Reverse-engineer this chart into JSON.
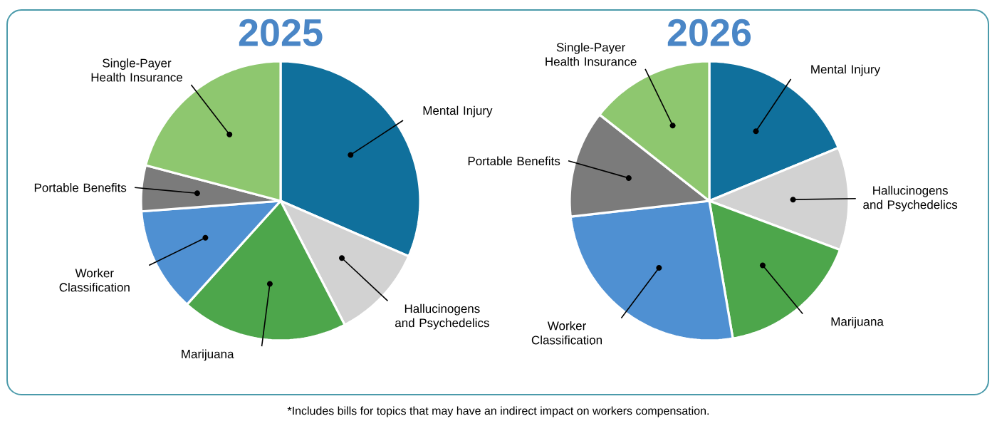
{
  "chart_data": [
    {
      "type": "pie",
      "title": "2025",
      "categories": [
        "Mental Injury",
        "Hallucinogens and Psychedelics",
        "Marijuana",
        "Worker Classification",
        "Portable Benefits",
        "Single-Payer Health Insurance"
      ],
      "values": [
        31.5,
        10.9,
        19.3,
        12.1,
        5.3,
        20.9
      ],
      "colors": [
        "#10709c",
        "#d2d2d2",
        "#4da64b",
        "#4f90d2",
        "#7b7b7b",
        "#8ec76f"
      ]
    },
    {
      "type": "pie",
      "title": "2026",
      "categories": [
        "Mental Injury",
        "Hallucinogens and Psychedelics",
        "Marijuana",
        "Worker Classification",
        "Portable Benefits",
        "Single-Payer Health Insurance"
      ],
      "values": [
        18.8,
        11.9,
        16.6,
        25.9,
        12.4,
        14.4
      ],
      "colors": [
        "#10709c",
        "#d2d2d2",
        "#4da64b",
        "#4f90d2",
        "#7b7b7b",
        "#8ec76f"
      ],
      "annotations": [
        "*Includes bills for topics that may have an indirect impact on workers compensation."
      ]
    }
  ]
}
